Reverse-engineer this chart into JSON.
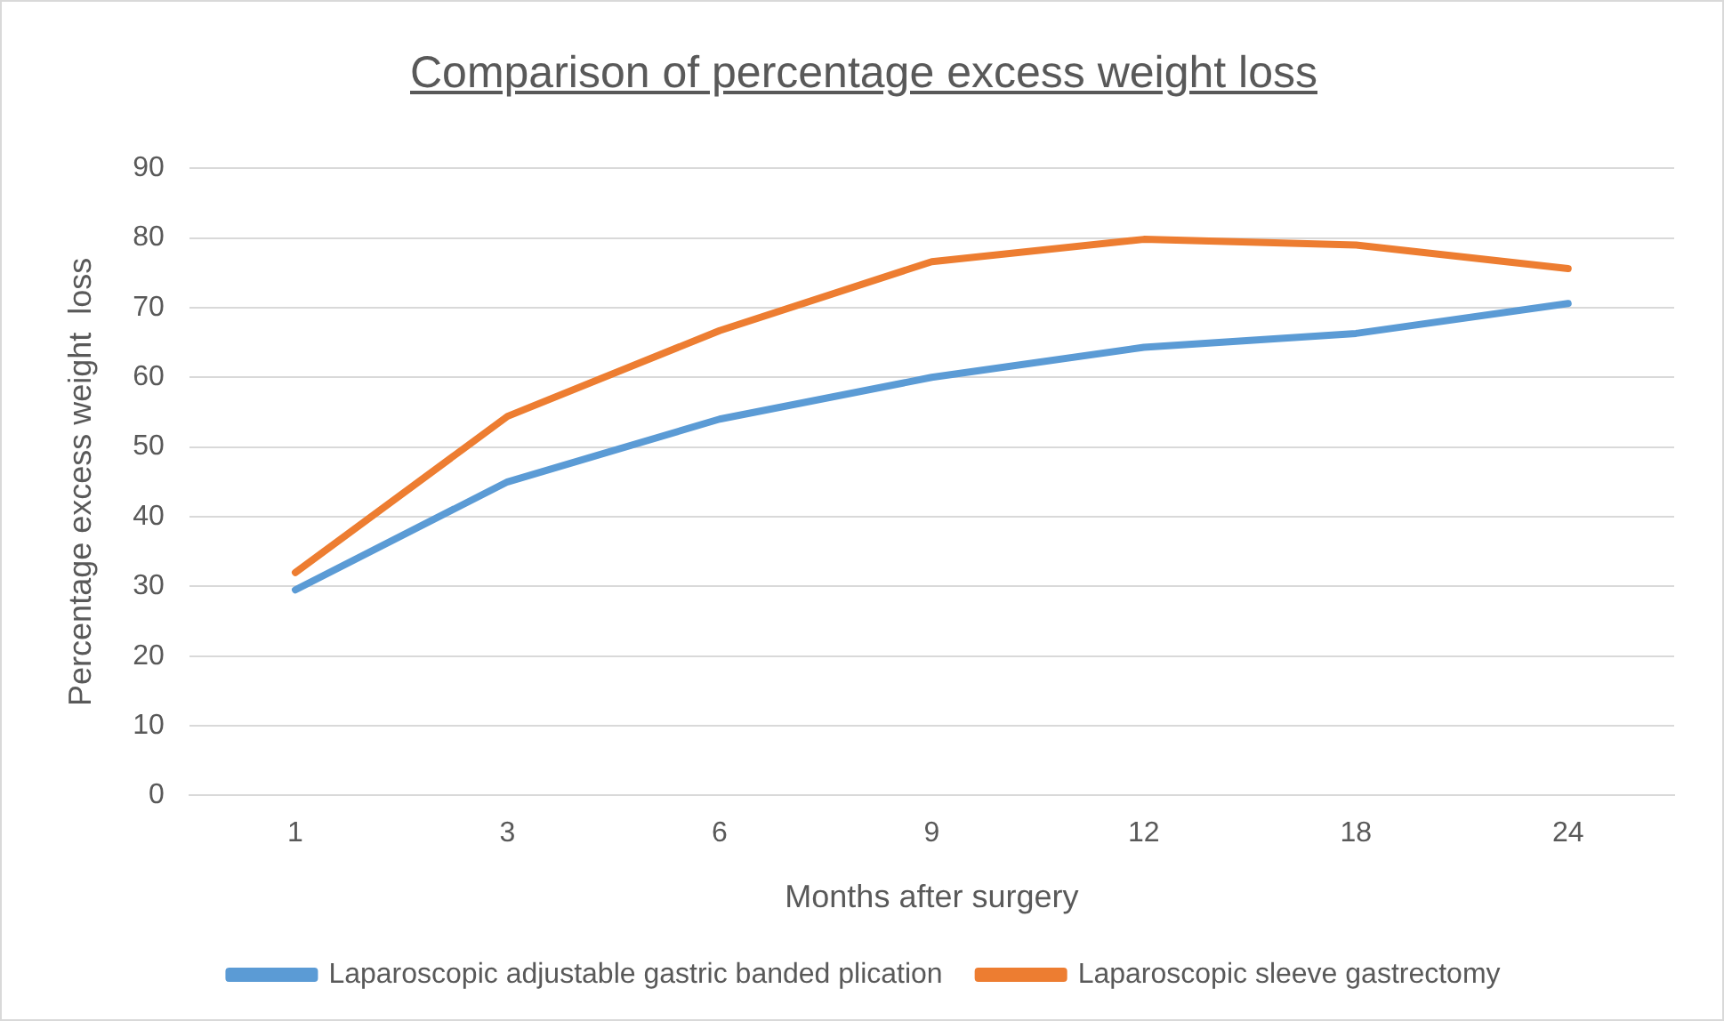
{
  "chart_data": {
    "type": "line",
    "title": "Comparison of percentage excess weight loss",
    "xlabel": "Months after surgery",
    "ylabel": "Percentage excess weight  loss",
    "categories": [
      "1",
      "3",
      "6",
      "9",
      "12",
      "18",
      "24"
    ],
    "series": [
      {
        "name": "Laparoscopic adjustable gastric banded plication",
        "color": "#5b9bd5",
        "values": [
          29.5,
          45,
          54,
          60,
          64.3,
          66.3,
          70.6
        ]
      },
      {
        "name": "Laparoscopic sleeve gastrectomy",
        "color": "#ed7d31",
        "values": [
          32,
          54.4,
          66.7,
          76.6,
          79.8,
          79,
          75.6
        ]
      }
    ],
    "ylim": [
      0,
      90
    ],
    "yticks": [
      0,
      10,
      20,
      30,
      40,
      50,
      60,
      70,
      80,
      90
    ],
    "grid": "y",
    "legend": "bottom",
    "marker": "none",
    "line_style": "solid"
  }
}
